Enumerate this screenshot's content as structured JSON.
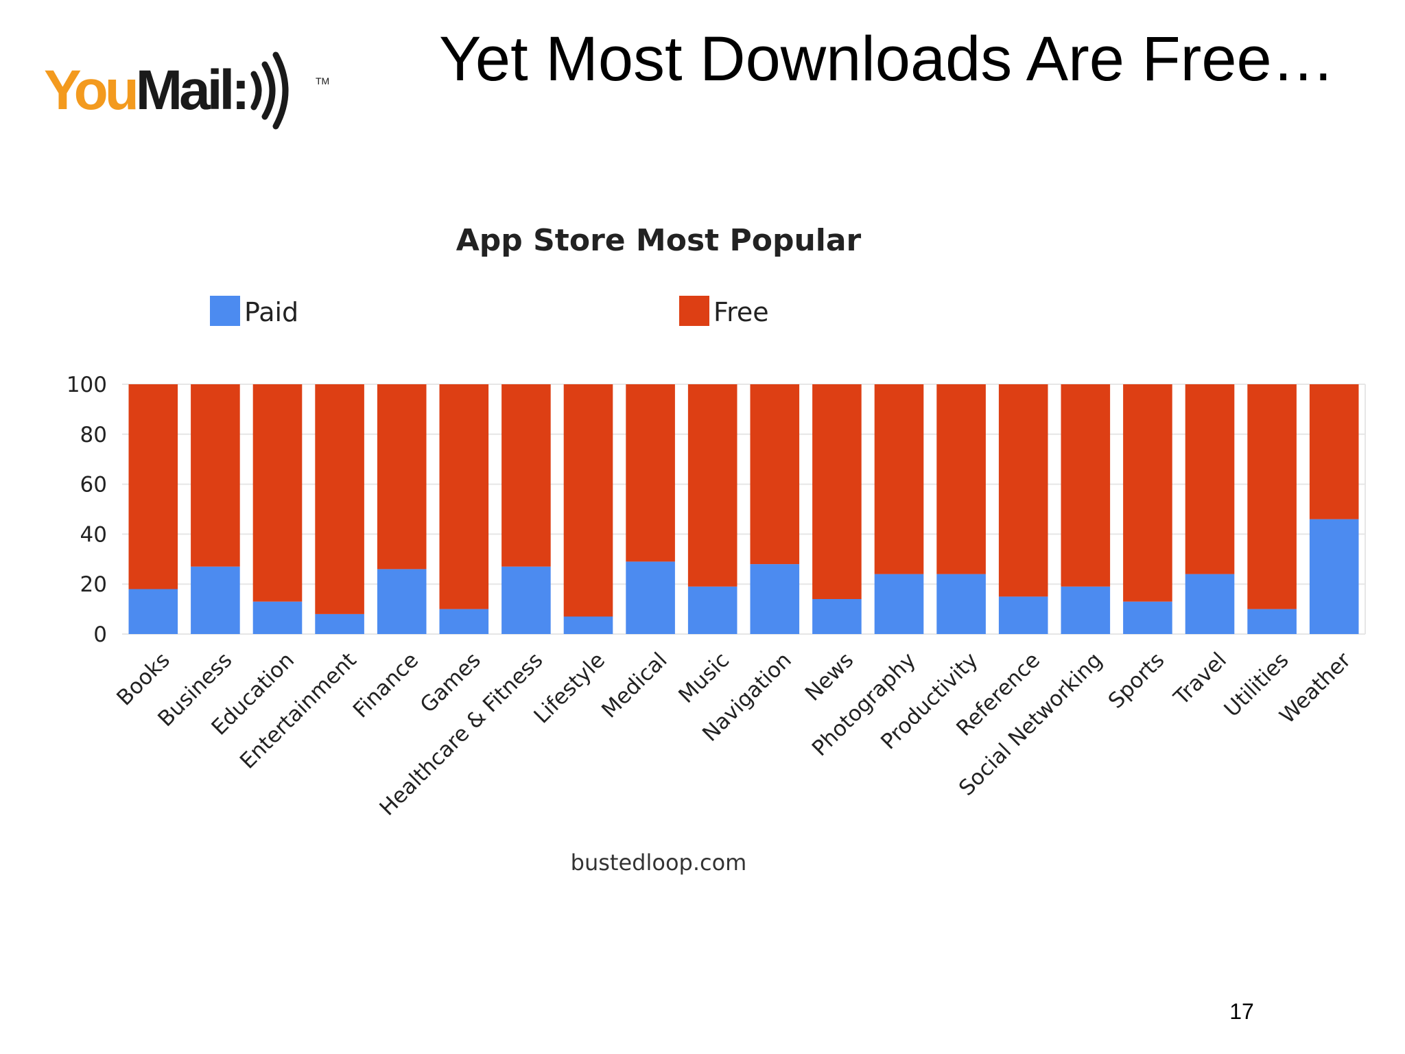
{
  "slide": {
    "title": "Yet Most Downloads Are Free…",
    "page_number": "17",
    "logo": {
      "text_you": "You",
      "text_mail": "Mail:",
      "trademark": "TM",
      "icon": "sound-waves-icon"
    }
  },
  "colors": {
    "paid": "#4c8bf0",
    "free": "#dd3f14",
    "logo_orange": "#f39a1e",
    "logo_dark": "#1a1a1a"
  },
  "chart_data": {
    "type": "bar",
    "stacked": true,
    "title": "App Store Most Popular",
    "source": "bustedloop.com",
    "xlabel": "",
    "ylabel": "",
    "ylim": [
      0,
      100
    ],
    "yticks": [
      0,
      20,
      40,
      60,
      80,
      100
    ],
    "grid": true,
    "legend_position": "top",
    "categories": [
      "Books",
      "Business",
      "Education",
      "Entertainment",
      "Finance",
      "Games",
      "Healthcare & Fitness",
      "Lifestyle",
      "Medical",
      "Music",
      "Navigation",
      "News",
      "Photography",
      "Productivity",
      "Reference",
      "Social Networking",
      "Sports",
      "Travel",
      "Utilities",
      "Weather"
    ],
    "series": [
      {
        "name": "Paid",
        "color": "#4c8bf0",
        "values": [
          18,
          27,
          13,
          8,
          26,
          10,
          27,
          7,
          29,
          19,
          28,
          14,
          24,
          24,
          15,
          19,
          13,
          24,
          10,
          46
        ]
      },
      {
        "name": "Free",
        "color": "#dd3f14",
        "values": [
          82,
          73,
          87,
          92,
          74,
          90,
          73,
          93,
          71,
          81,
          72,
          86,
          76,
          76,
          85,
          81,
          87,
          76,
          90,
          54
        ]
      }
    ]
  }
}
